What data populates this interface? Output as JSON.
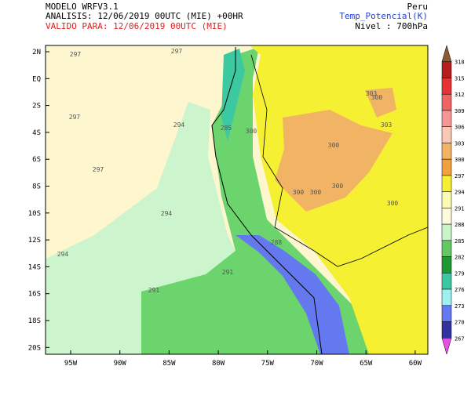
{
  "header": {
    "model": "MODELO WRFV3.1",
    "analysis": "ANALISIS: 12/06/2019 00UTC (MIE) +00HR",
    "valid": "VALIDO PARA: 12/06/2019 00UTC (MIE)",
    "region": "Peru",
    "variable": "Temp_Potencial(K)",
    "level": "Nivel : 700hPa"
  },
  "lat_labels": [
    "2N",
    "EQ",
    "2S",
    "4S",
    "6S",
    "8S",
    "10S",
    "12S",
    "14S",
    "16S",
    "18S",
    "20S"
  ],
  "lon_labels": [
    "95W",
    "90W",
    "85W",
    "80W",
    "75W",
    "70W",
    "65W",
    "60W"
  ],
  "colorbar": {
    "labels": [
      "318",
      "315",
      "312",
      "309",
      "306",
      "303",
      "300",
      "297",
      "294",
      "291",
      "288",
      "285",
      "282",
      "279",
      "276",
      "273",
      "270",
      "267"
    ],
    "colors": [
      "#8c5a32",
      "#b41e1e",
      "#e63232",
      "#f06464",
      "#f59696",
      "#fac8b4",
      "#f0b464",
      "#f0a03c",
      "#f5f032",
      "#fafab4",
      "#fffadc",
      "#c8f5c8",
      "#64c864",
      "#1e9632",
      "#3cc8a0",
      "#a0f0f0",
      "#6478f0",
      "#3232a0",
      "#e650e6"
    ]
  },
  "contour_labels": [
    "297",
    "297",
    "297",
    "294",
    "297",
    "294",
    "294",
    "291",
    "291",
    "300",
    "300",
    "300",
    "300",
    "300",
    "303",
    "300",
    "303",
    "300",
    "285",
    "288"
  ]
}
